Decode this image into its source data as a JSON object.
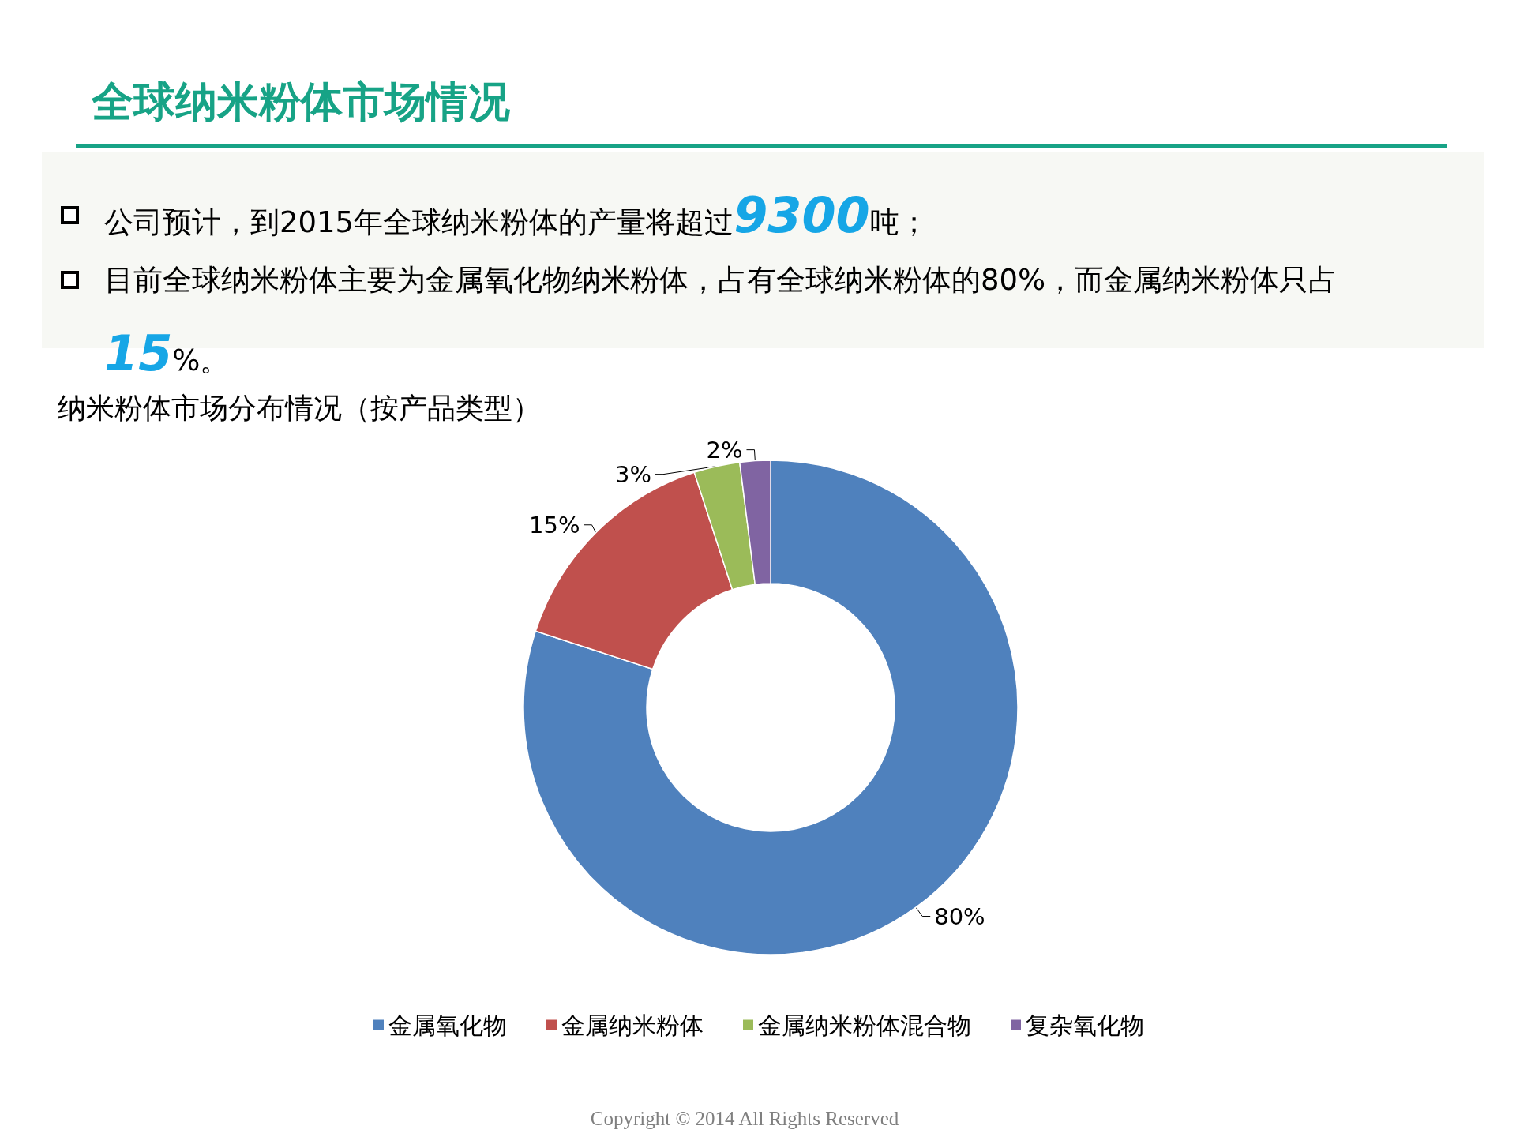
{
  "chart_data": {
    "type": "donut",
    "title": "全球纳米粉体市场情况",
    "subtitle": "纳米粉体市场分布情况（按产品类型）",
    "annotations": [
      "公司预计，到2015年全球纳米粉体的产量将超过9300吨；",
      "目前全球纳米粉体主要为金属氧化物纳米粉体，占有全球纳米粉体的80%，而金属纳米粉体只占15%。",
      "Copyright © 2014 All Rights Reserved"
    ],
    "categories": [
      "金属氧化物",
      "金属纳米粉体",
      "金属纳米粉体混合物",
      "复杂氧化物"
    ],
    "values": [
      80,
      15,
      3,
      2
    ],
    "value_labels": [
      "80%",
      "15%",
      "3%",
      "2%"
    ],
    "colors": [
      "#4f81bd",
      "#c0504d",
      "#9bbb59",
      "#8064a2"
    ],
    "legend": "bottom"
  }
}
